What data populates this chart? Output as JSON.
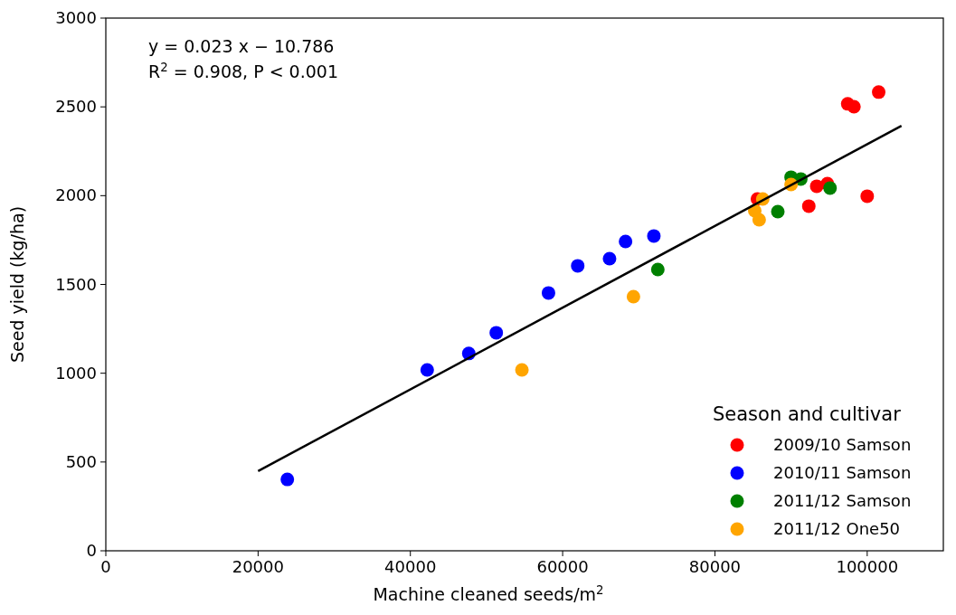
{
  "chart_data": {
    "type": "scatter",
    "xlabel": "Machine cleaned seeds/m$^{2}$",
    "ylabel": "Seed yield (kg/ha)",
    "legend_title": "Season and cultivar",
    "xlim": [
      0,
      110000
    ],
    "xticks": [
      0,
      20000,
      40000,
      60000,
      80000,
      100000
    ],
    "ylim": [
      0,
      3000
    ],
    "yticks": [
      0,
      500,
      1000,
      1500,
      2000,
      2500,
      3000
    ],
    "grid": false,
    "legend": "bottom right",
    "annotations": [
      "y = 0.023 x − 10.786",
      "R$^{2}$ = 0.908, P < 0.001"
    ],
    "series": [
      {
        "name": "2009/10 Samson",
        "color": "#ff0000",
        "marker": "circle",
        "x": [
          85580,
          93370,
          94770,
          92330,
          97440,
          98260,
          101510,
          100000
        ],
        "values": [
          1981,
          2053,
          2068,
          1941,
          2517,
          2501,
          2583,
          1997
        ]
      },
      {
        "name": "2010/11 Samson",
        "color": "#0000ff",
        "marker": "circle",
        "x": [
          23840,
          42210,
          47670,
          51280,
          58140,
          61980,
          66160,
          68260,
          71980
        ],
        "values": [
          402,
          1019,
          1111,
          1228,
          1452,
          1605,
          1645,
          1742,
          1773
        ]
      },
      {
        "name": "2011/12 Samson",
        "color": "#008000",
        "marker": "circle",
        "x": [
          72500,
          88260,
          90000,
          91280,
          95120
        ],
        "values": [
          1584,
          1910,
          2104,
          2094,
          2043
        ]
      },
      {
        "name": "2011/12 One50",
        "color": "#ffa500",
        "marker": "circle",
        "x": [
          54650,
          69300,
          85230,
          85810,
          86280,
          90000
        ],
        "values": [
          1019,
          1431,
          1915,
          1864,
          1981,
          2063
        ]
      },
      {
        "type": "line",
        "color": "#000000",
        "marker": "none",
        "x": [
          20000,
          104500
        ],
        "values": [
          449,
          2393
        ]
      }
    ]
  }
}
